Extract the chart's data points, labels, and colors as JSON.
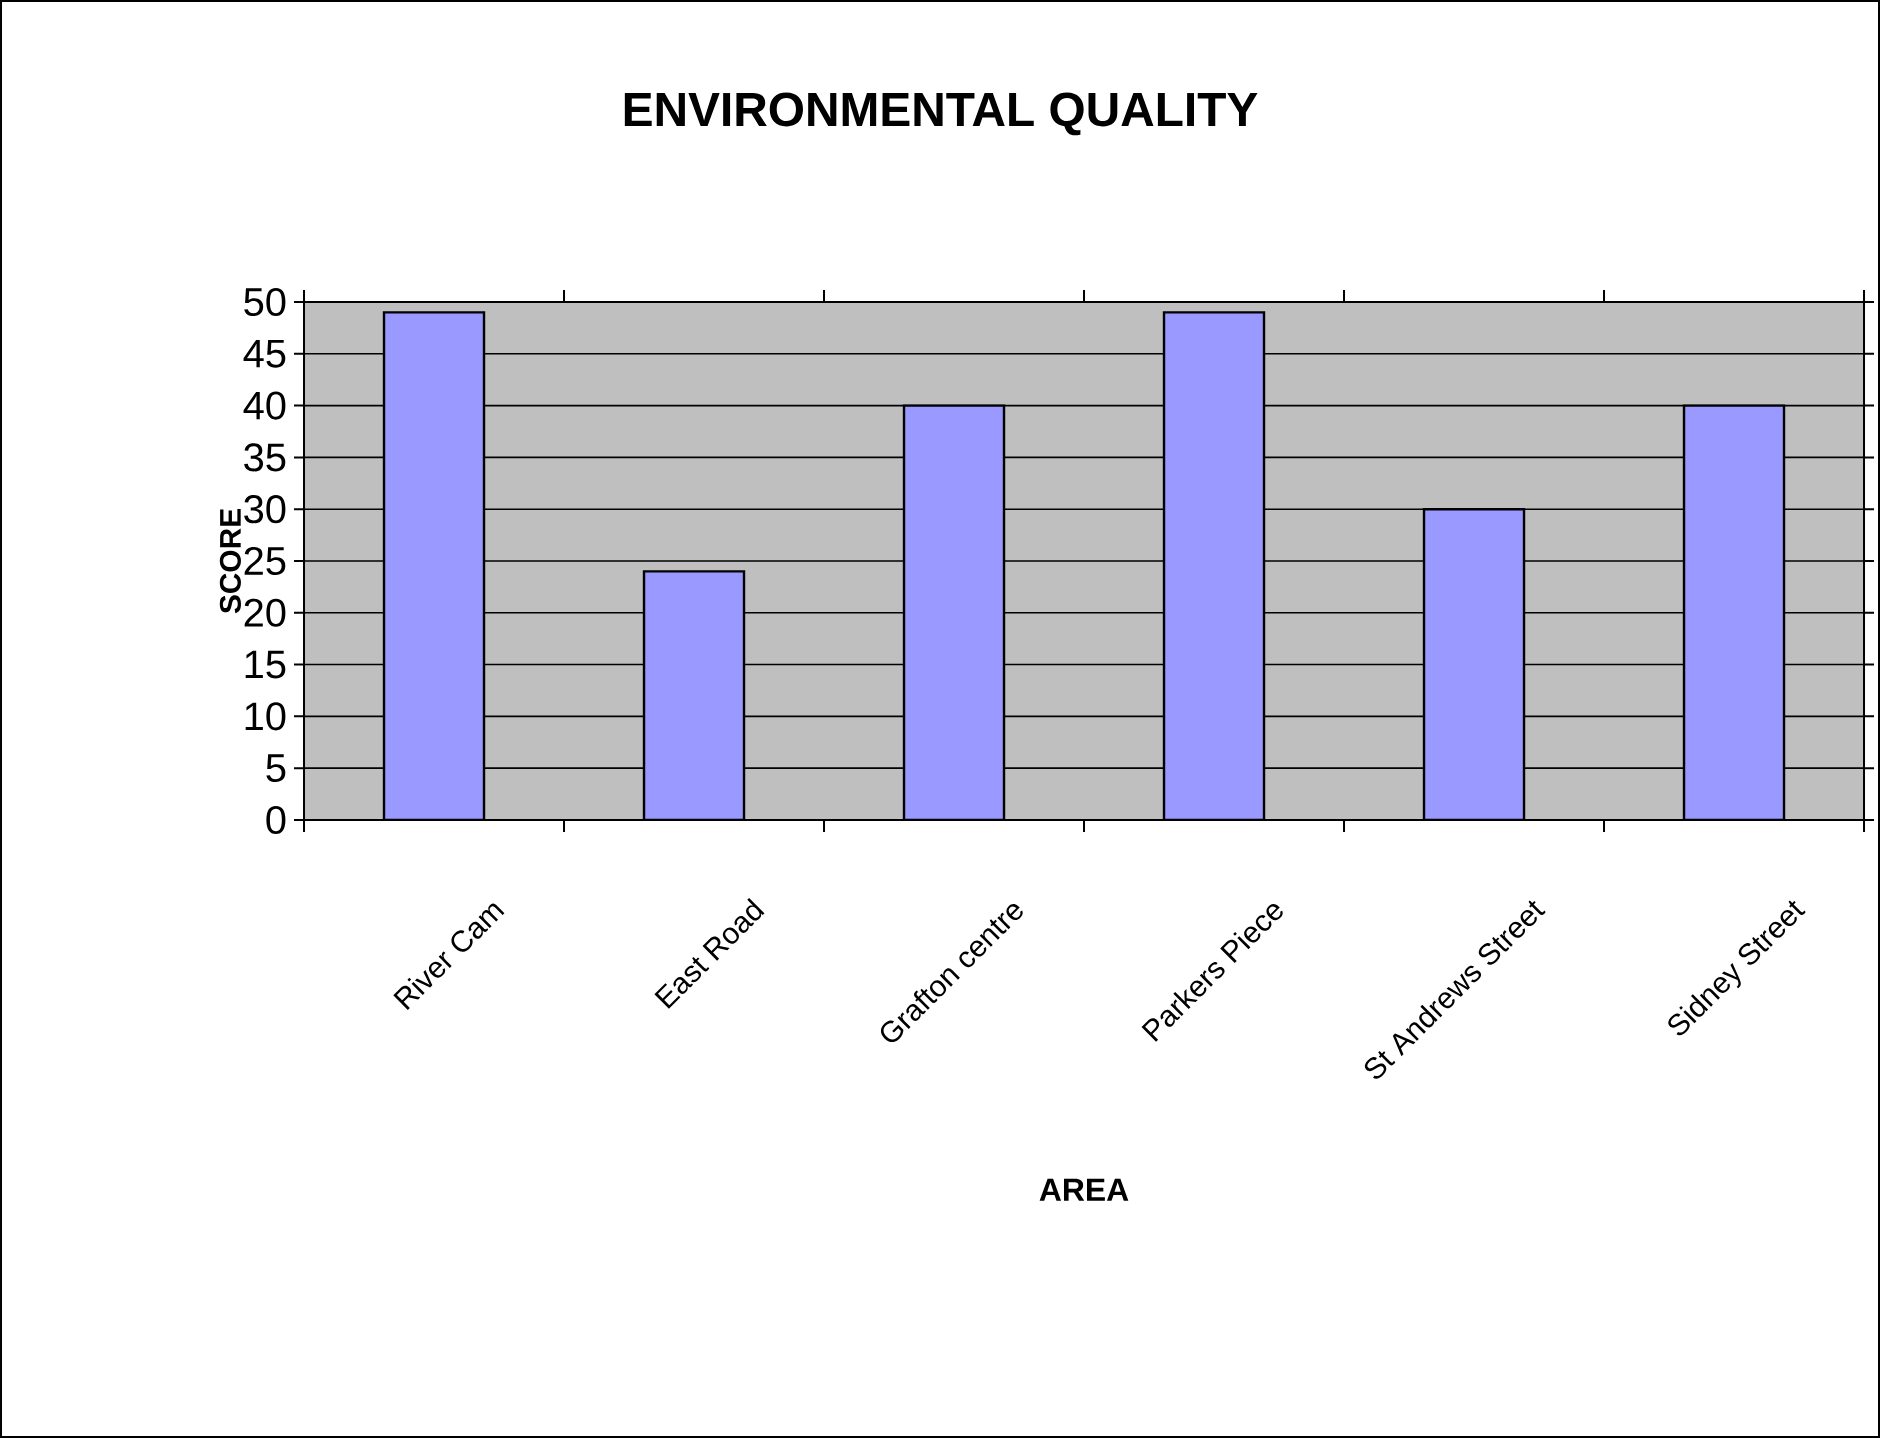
{
  "chart_data": {
    "type": "bar",
    "title": "ENVIRONMENTAL QUALITY",
    "xlabel": "AREA",
    "ylabel": "SCORE",
    "categories": [
      "River Cam",
      "East Road",
      "Grafton centre",
      "Parkers Piece",
      "St Andrews Street",
      "Sidney Street"
    ],
    "values": [
      49,
      24,
      40,
      49,
      30,
      40
    ],
    "color": "#9999ff",
    "ylim": [
      0,
      50
    ],
    "yticks": [
      0,
      5,
      10,
      15,
      20,
      25,
      30,
      35,
      40,
      45,
      50
    ],
    "grid": "y"
  }
}
